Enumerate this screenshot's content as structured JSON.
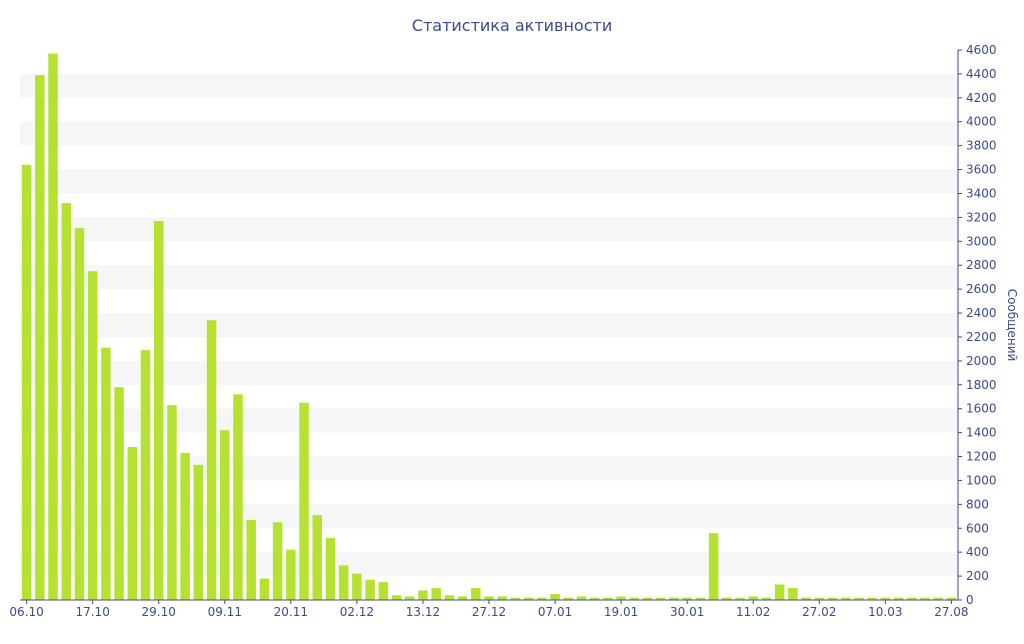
{
  "colors": {
    "bar": "#b5e232",
    "text": "#3d4a8c",
    "band": "#f6f6f6",
    "axis": "#3d4a8c"
  },
  "chart_data": {
    "type": "bar",
    "title": "Статистика активности",
    "xlabel": "",
    "ylabel": "Сообщений",
    "ylim": [
      0,
      4600
    ],
    "y_ticks": [
      0,
      200,
      400,
      600,
      800,
      1000,
      1200,
      1400,
      1600,
      1800,
      2000,
      2200,
      2400,
      2600,
      2800,
      3000,
      3200,
      3400,
      3600,
      3800,
      4000,
      4200,
      4400,
      4600
    ],
    "y_axis_side": "right",
    "grid": "alternating horizontal bands",
    "x_tick_labels": [
      {
        "index": 0,
        "label": "06.10"
      },
      {
        "index": 5,
        "label": "17.10"
      },
      {
        "index": 10,
        "label": "29.10"
      },
      {
        "index": 15,
        "label": "09.11"
      },
      {
        "index": 20,
        "label": "20.11"
      },
      {
        "index": 25,
        "label": "02.12"
      },
      {
        "index": 30,
        "label": "13.12"
      },
      {
        "index": 35,
        "label": "27.12"
      },
      {
        "index": 40,
        "label": "07.01"
      },
      {
        "index": 45,
        "label": "19.01"
      },
      {
        "index": 50,
        "label": "30.01"
      },
      {
        "index": 55,
        "label": "11.02"
      },
      {
        "index": 60,
        "label": "27.02"
      },
      {
        "index": 65,
        "label": "10.03"
      },
      {
        "index": 70,
        "label": "27.08"
      }
    ],
    "values": [
      3640,
      4390,
      4570,
      3320,
      3110,
      2750,
      2110,
      1780,
      1280,
      2090,
      3170,
      1630,
      1230,
      1130,
      2340,
      1420,
      1720,
      670,
      180,
      650,
      420,
      1650,
      710,
      520,
      290,
      220,
      170,
      150,
      40,
      30,
      80,
      100,
      40,
      30,
      100,
      30,
      30,
      20,
      20,
      20,
      50,
      20,
      30,
      20,
      20,
      30,
      20,
      20,
      20,
      20,
      20,
      20,
      560,
      20,
      20,
      30,
      20,
      130,
      100,
      20,
      20,
      20,
      20,
      20,
      20,
      20,
      20,
      20,
      20,
      20,
      20
    ]
  }
}
